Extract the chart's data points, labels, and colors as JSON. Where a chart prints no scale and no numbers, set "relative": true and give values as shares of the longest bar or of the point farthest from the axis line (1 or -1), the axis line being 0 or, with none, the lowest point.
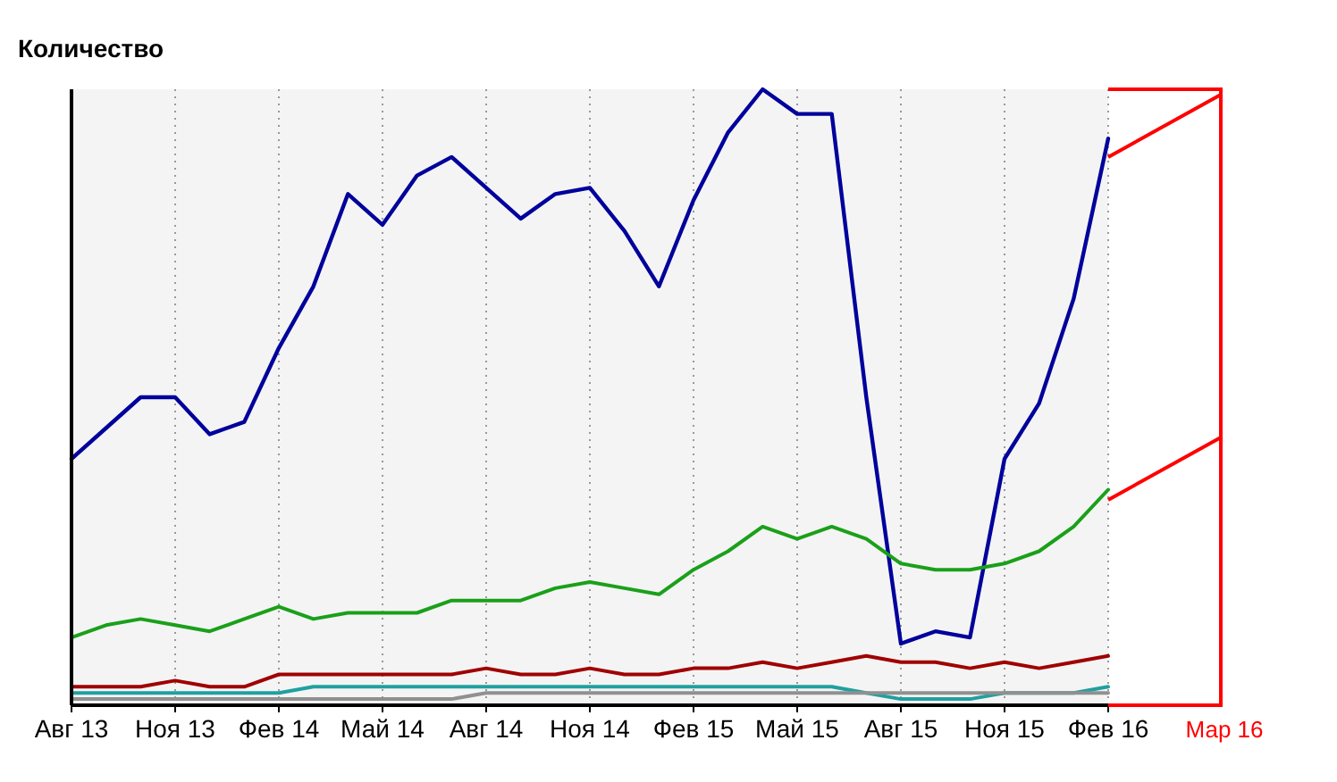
{
  "chart_data": {
    "type": "line",
    "relative": true,
    "ylabel": "Количество",
    "grid": "x",
    "categories": [
      "Авг 13",
      null,
      null,
      "Ноя 13",
      null,
      null,
      "Фев 14",
      null,
      null,
      "Май 14",
      null,
      null,
      "Авг 14",
      null,
      null,
      "Ноя 14",
      null,
      null,
      "Фев 15",
      null,
      null,
      "Май 15",
      null,
      null,
      "Авг 15",
      null,
      null,
      "Ноя 15",
      null,
      null,
      "Фев 16"
    ],
    "series": [
      {
        "color": "#00009c",
        "values": [
          0.4,
          0.45,
          0.5,
          0.5,
          0.44,
          0.46,
          0.58,
          0.68,
          0.83,
          0.78,
          0.86,
          0.89,
          0.84,
          0.79,
          0.83,
          0.84,
          0.77,
          0.68,
          0.82,
          0.93,
          1,
          0.96,
          0.96,
          0.5,
          0.1,
          0.12,
          0.11,
          0.4,
          0.49,
          0.66,
          0.92
        ]
      },
      {
        "color": "#1aa01a",
        "values": [
          0.11,
          0.13,
          0.14,
          0.13,
          0.12,
          0.14,
          0.16,
          0.14,
          0.15,
          0.15,
          0.15,
          0.17,
          0.17,
          0.17,
          0.19,
          0.2,
          0.19,
          0.18,
          0.22,
          0.25,
          0.29,
          0.27,
          0.29,
          0.27,
          0.23,
          0.22,
          0.22,
          0.23,
          0.25,
          0.29,
          0.35
        ]
      },
      {
        "color": "#a00000",
        "values": [
          0.03,
          0.03,
          0.03,
          0.04,
          0.03,
          0.03,
          0.05,
          0.05,
          0.05,
          0.05,
          0.05,
          0.05,
          0.06,
          0.05,
          0.05,
          0.06,
          0.05,
          0.05,
          0.06,
          0.06,
          0.07,
          0.06,
          0.07,
          0.08,
          0.07,
          0.07,
          0.06,
          0.07,
          0.06,
          0.07,
          0.08
        ]
      },
      {
        "color": "#20a0a0",
        "values": [
          0.02,
          0.02,
          0.02,
          0.02,
          0.02,
          0.02,
          0.02,
          0.03,
          0.03,
          0.03,
          0.03,
          0.03,
          0.03,
          0.03,
          0.03,
          0.03,
          0.03,
          0.03,
          0.03,
          0.03,
          0.03,
          0.03,
          0.03,
          0.02,
          0.01,
          0.01,
          0.01,
          0.02,
          0.02,
          0.02,
          0.03
        ]
      },
      {
        "color": "#909090",
        "values": [
          0.01,
          0.01,
          0.01,
          0.01,
          0.01,
          0.01,
          0.01,
          0.01,
          0.01,
          0.01,
          0.01,
          0.01,
          0.02,
          0.02,
          0.02,
          0.02,
          0.02,
          0.02,
          0.02,
          0.02,
          0.02,
          0.02,
          0.02,
          0.02,
          0.02,
          0.02,
          0.02,
          0.02,
          0.02,
          0.02,
          0.02
        ]
      }
    ],
    "annotations": [
      "Мар 16"
    ]
  }
}
